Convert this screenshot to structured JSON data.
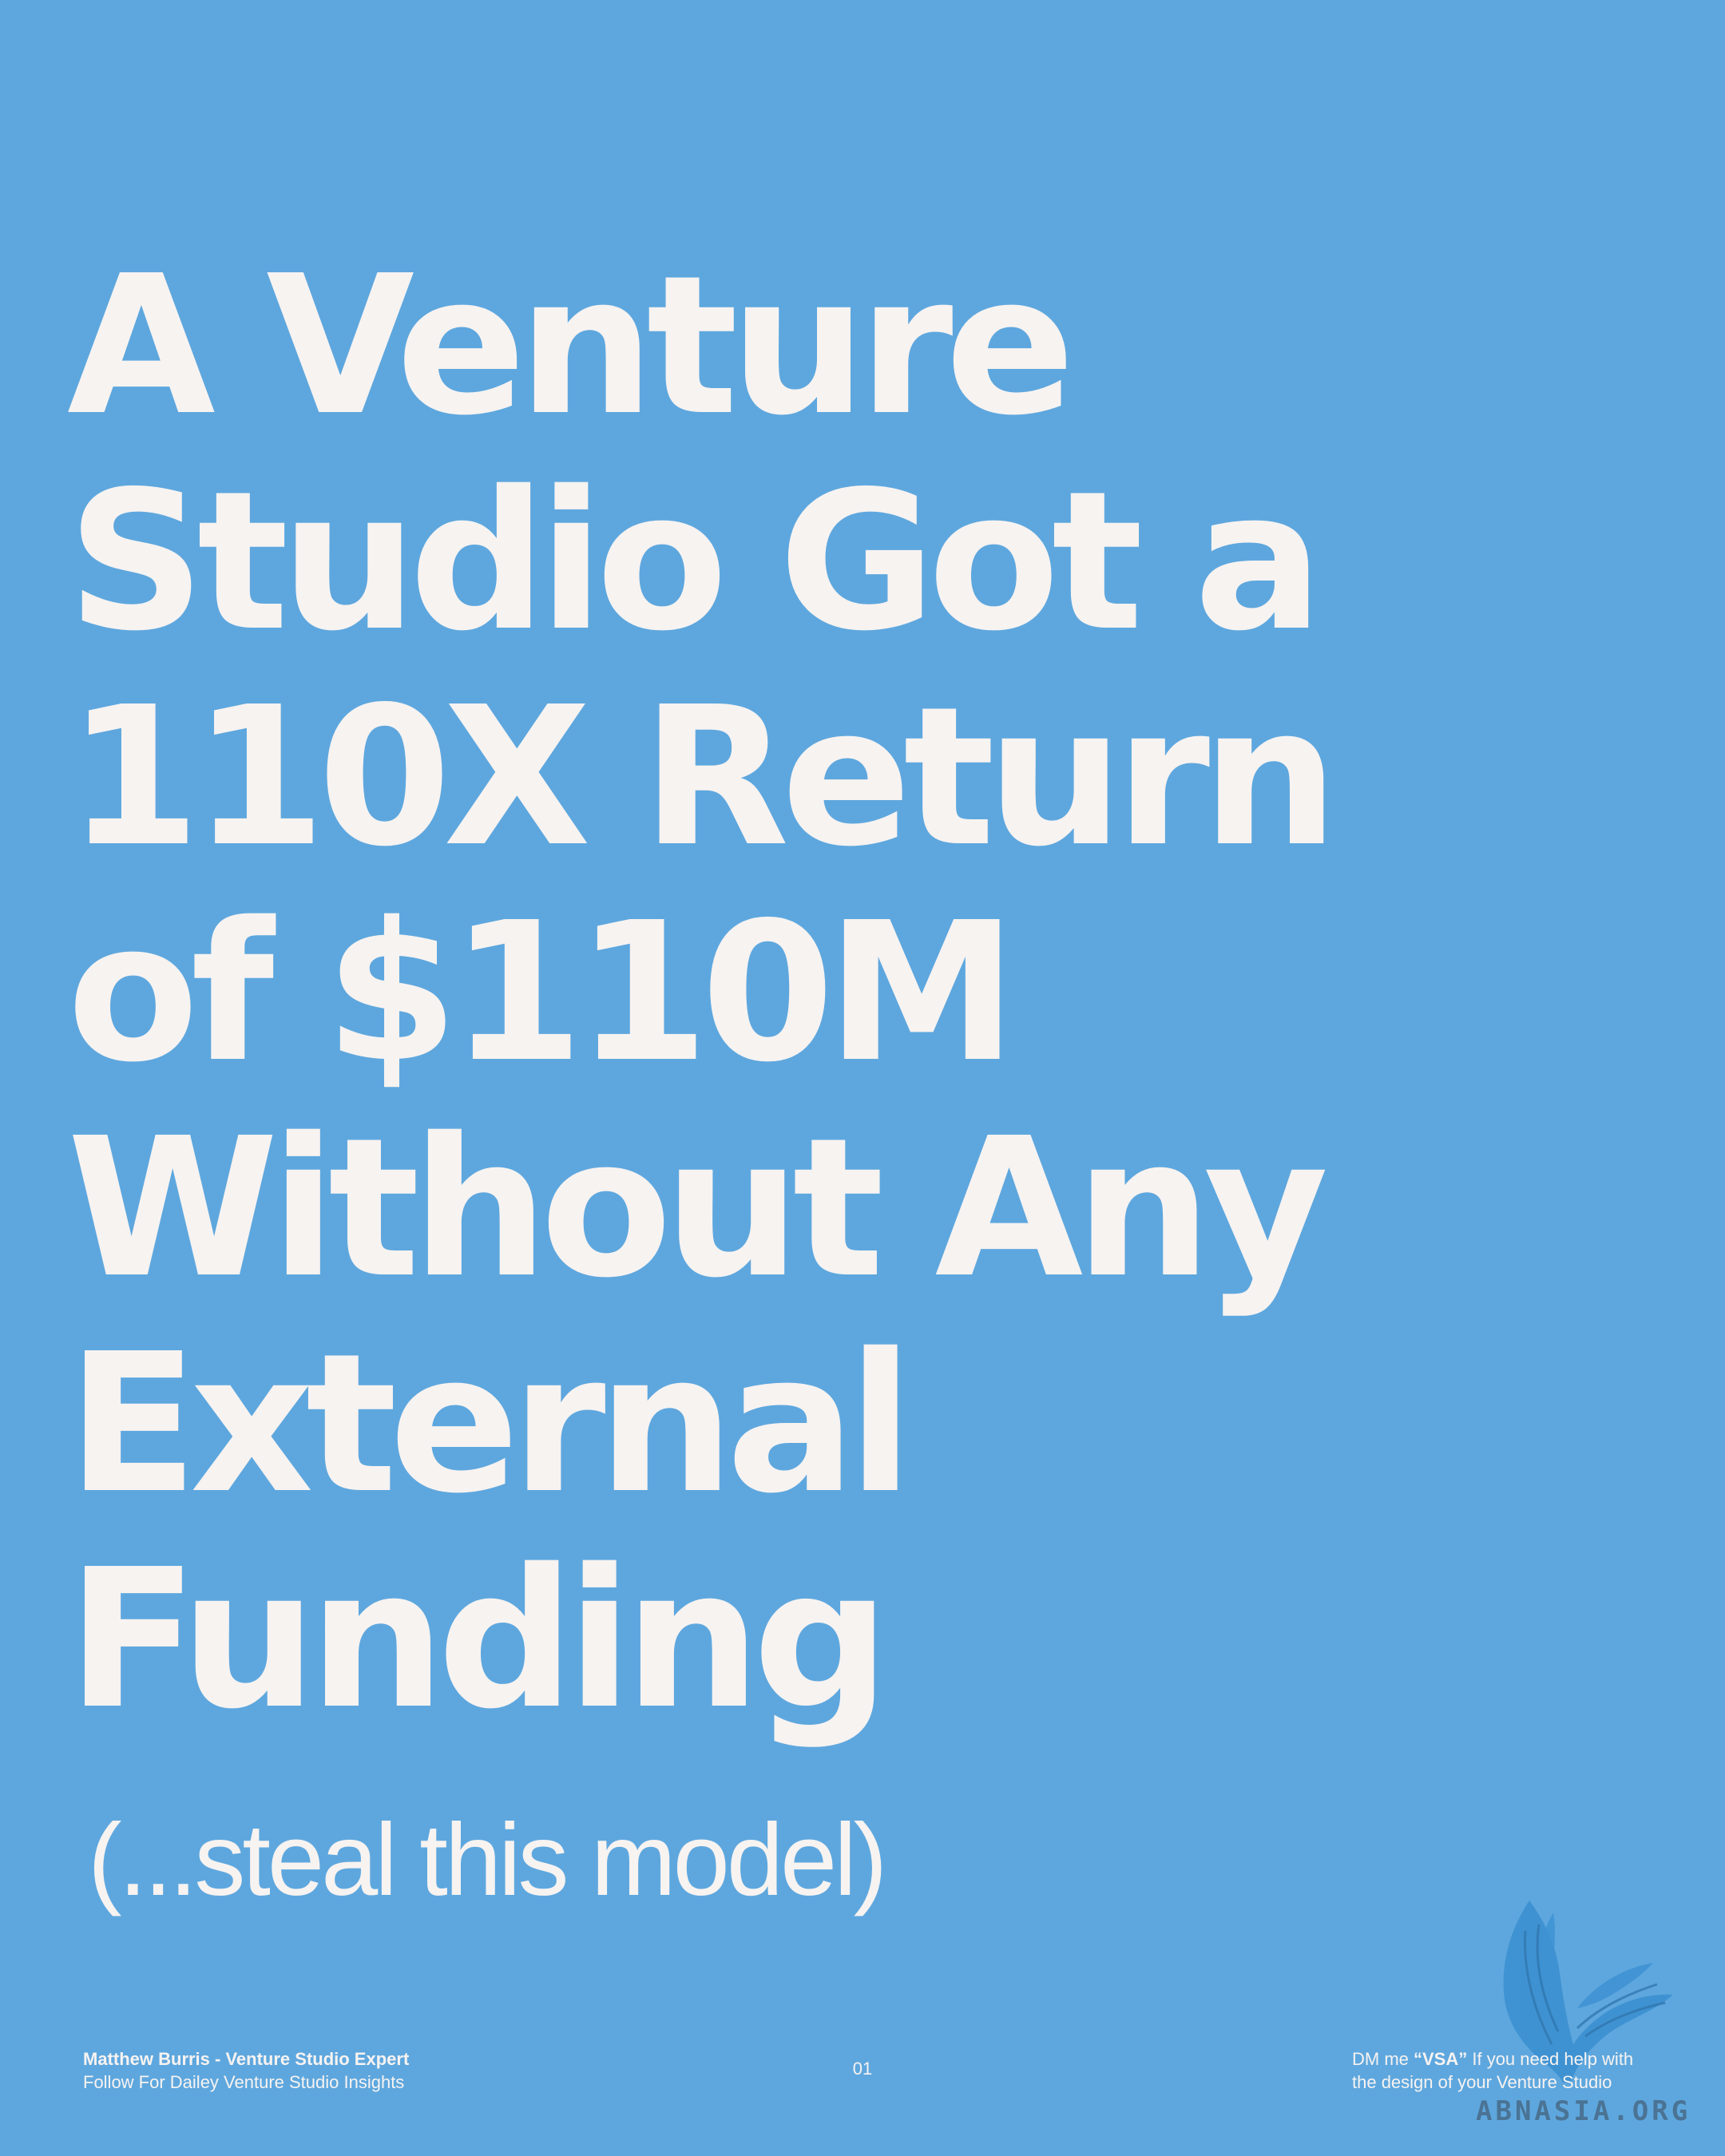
{
  "slide": {
    "headline_lines": [
      "A Venture",
      "Studio Got a",
      "110X Return",
      "of $110M",
      "Without Any",
      "External",
      "Funding"
    ],
    "subtitle": "(...steal this model)"
  },
  "footer": {
    "author": "Matthew Burris - Venture Studio Expert",
    "tagline": "Follow For Dailey Venture Studio Insights",
    "page_number": "01",
    "cta_prefix": "DM me ",
    "cta_keyword": "“VSA”",
    "cta_rest_line1": " If you need help with",
    "cta_line2": "the design of your Venture Studio"
  },
  "watermark": {
    "text": "ABNASIA.ORG",
    "logo_icon": "bird-logo-icon"
  },
  "colors": {
    "background": "#5ea7de",
    "text": "#f7f3f1",
    "watermark": "#3a8fd0"
  }
}
